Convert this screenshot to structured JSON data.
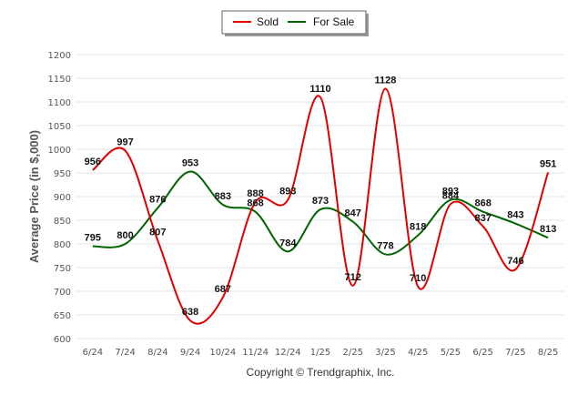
{
  "chart_data": {
    "type": "line",
    "categories": [
      "6/24",
      "7/24",
      "8/24",
      "9/24",
      "10/24",
      "11/24",
      "12/24",
      "1/25",
      "2/25",
      "3/25",
      "4/25",
      "5/25",
      "6/25",
      "7/25",
      "8/25"
    ],
    "series": [
      {
        "name": "Sold",
        "color": "#e00000",
        "values": [
          956,
          997,
          807,
          638,
          687,
          888,
          893,
          1110,
          712,
          1128,
          710,
          884,
          837,
          746,
          951
        ]
      },
      {
        "name": "For Sale",
        "color": "#006400",
        "values": [
          795,
          800,
          876,
          953,
          883,
          868,
          784,
          873,
          847,
          778,
          818,
          893,
          868,
          843,
          813
        ]
      }
    ],
    "ylabel": "Average Price (in $,000)",
    "xlabel": "",
    "ylim": [
      600,
      1200
    ],
    "yticks": [
      600,
      650,
      700,
      750,
      800,
      850,
      900,
      950,
      1000,
      1050,
      1100,
      1150,
      1200
    ],
    "grid": true,
    "legend_position": "top-center",
    "footer": "Copyright © Trendgraphix, Inc."
  }
}
